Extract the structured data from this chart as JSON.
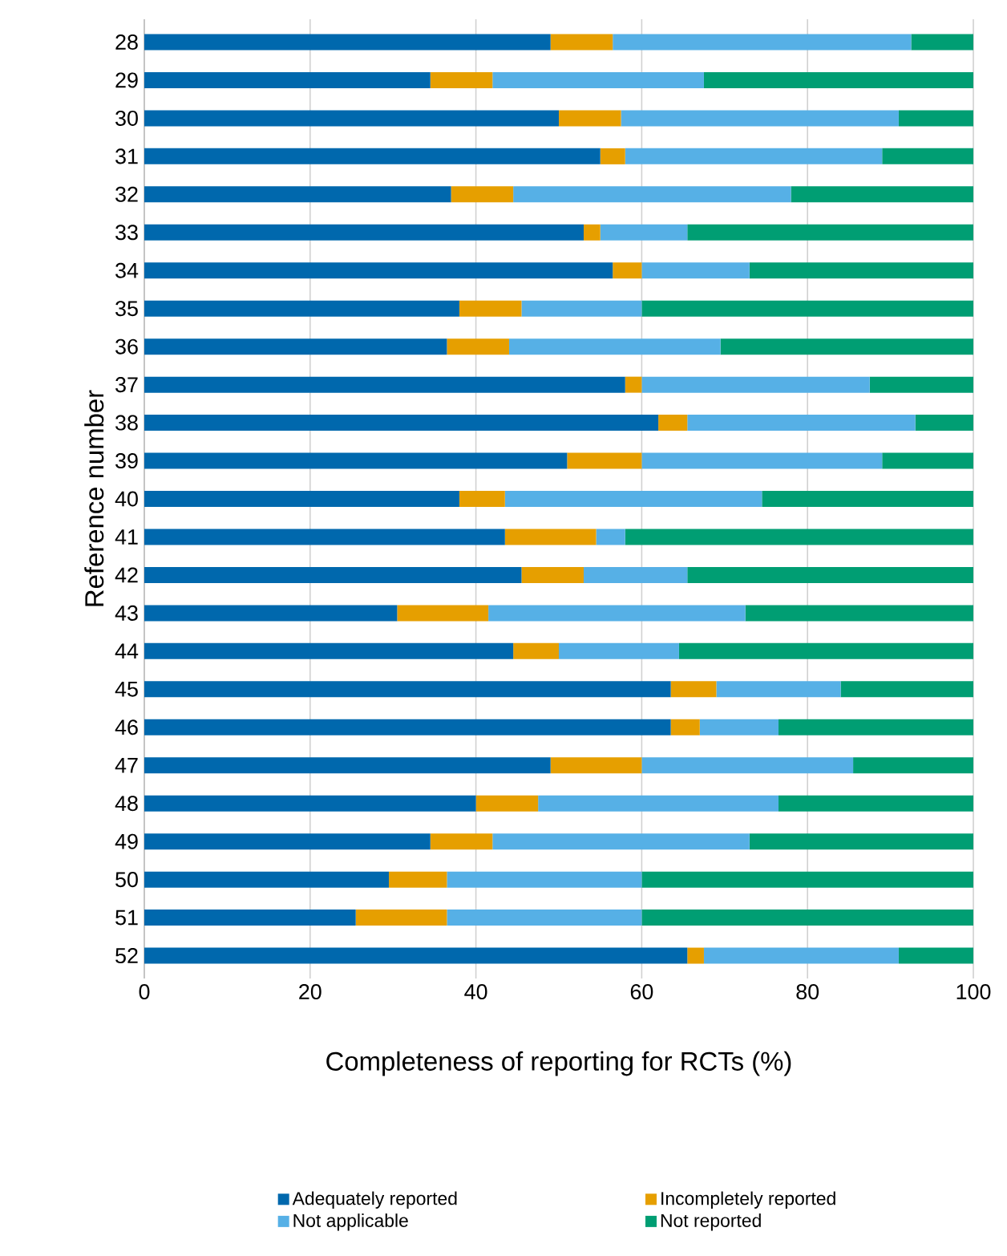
{
  "chart_data": {
    "type": "bar",
    "orientation": "horizontal",
    "stacked": true,
    "xlabel": "Completeness of reporting for RCTs (%)",
    "ylabel": "Reference number",
    "categories": [
      "28",
      "29",
      "30",
      "31",
      "32",
      "33",
      "34",
      "35",
      "36",
      "37",
      "38",
      "39",
      "40",
      "41",
      "42",
      "43",
      "44",
      "45",
      "46",
      "47",
      "48",
      "49",
      "50",
      "51",
      "52"
    ],
    "series": [
      {
        "name": "Adequately reported",
        "color": "#0068ad",
        "values": [
          49,
          34.5,
          50,
          55,
          37,
          53,
          56.5,
          38,
          36.5,
          58,
          62,
          51,
          38,
          43.5,
          45.5,
          30.5,
          44.5,
          63.5,
          63.5,
          49,
          40,
          34.5,
          29.5,
          25.5,
          65.5
        ]
      },
      {
        "name": "Incompletely reported",
        "color": "#e69f00",
        "values": [
          7.5,
          7.5,
          7.5,
          3,
          7.5,
          2,
          3.5,
          7.5,
          7.5,
          2,
          3.5,
          9,
          5.5,
          11,
          7.5,
          11,
          5.5,
          5.5,
          3.5,
          11,
          7.5,
          7.5,
          7,
          11,
          2
        ]
      },
      {
        "name": "Not applicable",
        "color": "#56b0e6",
        "values": [
          36,
          25.5,
          33.5,
          31,
          33.5,
          10.5,
          13,
          14.5,
          25.5,
          27.5,
          27.5,
          29,
          31,
          3.5,
          12.5,
          31,
          14.5,
          15,
          9.5,
          25.5,
          29,
          31,
          23.5,
          23.5,
          23.5
        ]
      },
      {
        "name": "Not reported",
        "color": "#009e73",
        "values": [
          7.5,
          32.5,
          9,
          11,
          22,
          34.5,
          27,
          40,
          30.5,
          12.5,
          7,
          11,
          25.5,
          42,
          34.5,
          27.5,
          35.5,
          16,
          23.5,
          14.5,
          23.5,
          27,
          40,
          40,
          9
        ]
      }
    ],
    "xlim": [
      0,
      100
    ],
    "xticks": [
      0,
      20,
      40,
      60,
      80,
      100
    ],
    "grid": "x",
    "legend": "bottom"
  }
}
